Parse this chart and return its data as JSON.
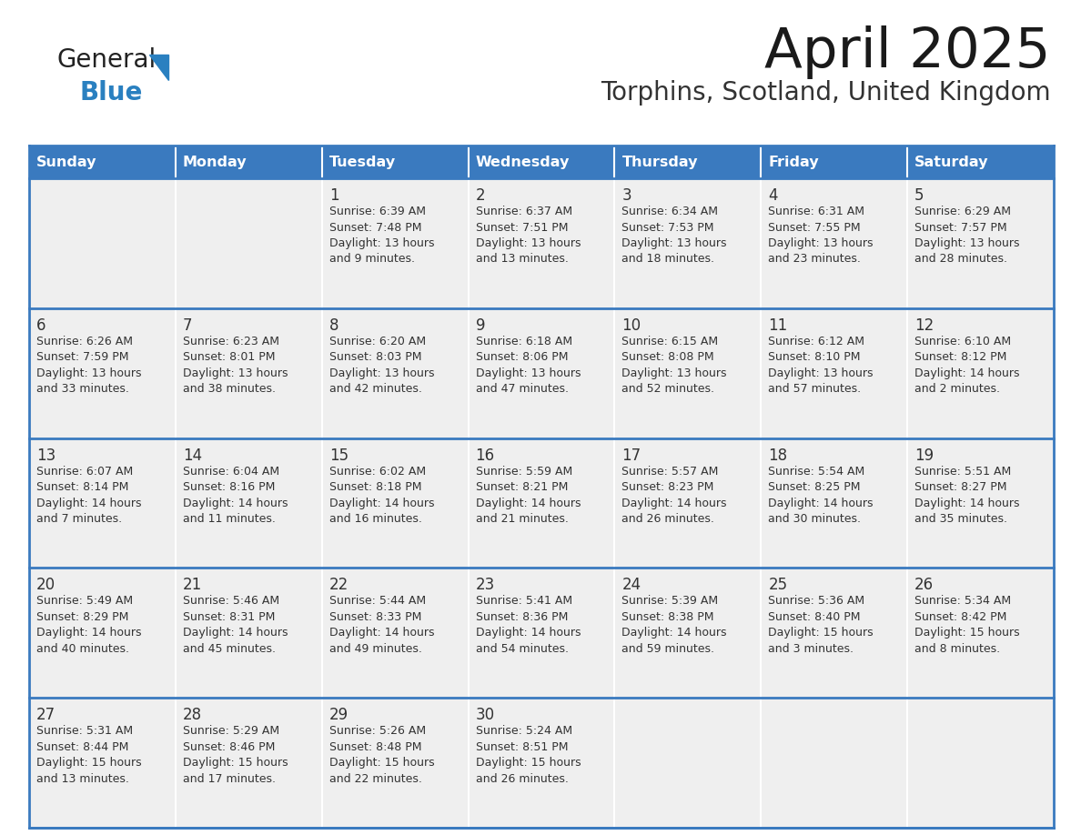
{
  "title": "April 2025",
  "subtitle": "Torphins, Scotland, United Kingdom",
  "header_color": "#3a7abf",
  "header_text_color": "#ffffff",
  "cell_bg_color": "#efefef",
  "border_color": "#3a7abf",
  "text_color": "#333333",
  "day_names": [
    "Sunday",
    "Monday",
    "Tuesday",
    "Wednesday",
    "Thursday",
    "Friday",
    "Saturday"
  ],
  "weeks": [
    [
      {
        "day": "",
        "sunrise": "",
        "sunset": "",
        "daylight1": "",
        "daylight2": ""
      },
      {
        "day": "",
        "sunrise": "",
        "sunset": "",
        "daylight1": "",
        "daylight2": ""
      },
      {
        "day": "1",
        "sunrise": "Sunrise: 6:39 AM",
        "sunset": "Sunset: 7:48 PM",
        "daylight1": "Daylight: 13 hours",
        "daylight2": "and 9 minutes."
      },
      {
        "day": "2",
        "sunrise": "Sunrise: 6:37 AM",
        "sunset": "Sunset: 7:51 PM",
        "daylight1": "Daylight: 13 hours",
        "daylight2": "and 13 minutes."
      },
      {
        "day": "3",
        "sunrise": "Sunrise: 6:34 AM",
        "sunset": "Sunset: 7:53 PM",
        "daylight1": "Daylight: 13 hours",
        "daylight2": "and 18 minutes."
      },
      {
        "day": "4",
        "sunrise": "Sunrise: 6:31 AM",
        "sunset": "Sunset: 7:55 PM",
        "daylight1": "Daylight: 13 hours",
        "daylight2": "and 23 minutes."
      },
      {
        "day": "5",
        "sunrise": "Sunrise: 6:29 AM",
        "sunset": "Sunset: 7:57 PM",
        "daylight1": "Daylight: 13 hours",
        "daylight2": "and 28 minutes."
      }
    ],
    [
      {
        "day": "6",
        "sunrise": "Sunrise: 6:26 AM",
        "sunset": "Sunset: 7:59 PM",
        "daylight1": "Daylight: 13 hours",
        "daylight2": "and 33 minutes."
      },
      {
        "day": "7",
        "sunrise": "Sunrise: 6:23 AM",
        "sunset": "Sunset: 8:01 PM",
        "daylight1": "Daylight: 13 hours",
        "daylight2": "and 38 minutes."
      },
      {
        "day": "8",
        "sunrise": "Sunrise: 6:20 AM",
        "sunset": "Sunset: 8:03 PM",
        "daylight1": "Daylight: 13 hours",
        "daylight2": "and 42 minutes."
      },
      {
        "day": "9",
        "sunrise": "Sunrise: 6:18 AM",
        "sunset": "Sunset: 8:06 PM",
        "daylight1": "Daylight: 13 hours",
        "daylight2": "and 47 minutes."
      },
      {
        "day": "10",
        "sunrise": "Sunrise: 6:15 AM",
        "sunset": "Sunset: 8:08 PM",
        "daylight1": "Daylight: 13 hours",
        "daylight2": "and 52 minutes."
      },
      {
        "day": "11",
        "sunrise": "Sunrise: 6:12 AM",
        "sunset": "Sunset: 8:10 PM",
        "daylight1": "Daylight: 13 hours",
        "daylight2": "and 57 minutes."
      },
      {
        "day": "12",
        "sunrise": "Sunrise: 6:10 AM",
        "sunset": "Sunset: 8:12 PM",
        "daylight1": "Daylight: 14 hours",
        "daylight2": "and 2 minutes."
      }
    ],
    [
      {
        "day": "13",
        "sunrise": "Sunrise: 6:07 AM",
        "sunset": "Sunset: 8:14 PM",
        "daylight1": "Daylight: 14 hours",
        "daylight2": "and 7 minutes."
      },
      {
        "day": "14",
        "sunrise": "Sunrise: 6:04 AM",
        "sunset": "Sunset: 8:16 PM",
        "daylight1": "Daylight: 14 hours",
        "daylight2": "and 11 minutes."
      },
      {
        "day": "15",
        "sunrise": "Sunrise: 6:02 AM",
        "sunset": "Sunset: 8:18 PM",
        "daylight1": "Daylight: 14 hours",
        "daylight2": "and 16 minutes."
      },
      {
        "day": "16",
        "sunrise": "Sunrise: 5:59 AM",
        "sunset": "Sunset: 8:21 PM",
        "daylight1": "Daylight: 14 hours",
        "daylight2": "and 21 minutes."
      },
      {
        "day": "17",
        "sunrise": "Sunrise: 5:57 AM",
        "sunset": "Sunset: 8:23 PM",
        "daylight1": "Daylight: 14 hours",
        "daylight2": "and 26 minutes."
      },
      {
        "day": "18",
        "sunrise": "Sunrise: 5:54 AM",
        "sunset": "Sunset: 8:25 PM",
        "daylight1": "Daylight: 14 hours",
        "daylight2": "and 30 minutes."
      },
      {
        "day": "19",
        "sunrise": "Sunrise: 5:51 AM",
        "sunset": "Sunset: 8:27 PM",
        "daylight1": "Daylight: 14 hours",
        "daylight2": "and 35 minutes."
      }
    ],
    [
      {
        "day": "20",
        "sunrise": "Sunrise: 5:49 AM",
        "sunset": "Sunset: 8:29 PM",
        "daylight1": "Daylight: 14 hours",
        "daylight2": "and 40 minutes."
      },
      {
        "day": "21",
        "sunrise": "Sunrise: 5:46 AM",
        "sunset": "Sunset: 8:31 PM",
        "daylight1": "Daylight: 14 hours",
        "daylight2": "and 45 minutes."
      },
      {
        "day": "22",
        "sunrise": "Sunrise: 5:44 AM",
        "sunset": "Sunset: 8:33 PM",
        "daylight1": "Daylight: 14 hours",
        "daylight2": "and 49 minutes."
      },
      {
        "day": "23",
        "sunrise": "Sunrise: 5:41 AM",
        "sunset": "Sunset: 8:36 PM",
        "daylight1": "Daylight: 14 hours",
        "daylight2": "and 54 minutes."
      },
      {
        "day": "24",
        "sunrise": "Sunrise: 5:39 AM",
        "sunset": "Sunset: 8:38 PM",
        "daylight1": "Daylight: 14 hours",
        "daylight2": "and 59 minutes."
      },
      {
        "day": "25",
        "sunrise": "Sunrise: 5:36 AM",
        "sunset": "Sunset: 8:40 PM",
        "daylight1": "Daylight: 15 hours",
        "daylight2": "and 3 minutes."
      },
      {
        "day": "26",
        "sunrise": "Sunrise: 5:34 AM",
        "sunset": "Sunset: 8:42 PM",
        "daylight1": "Daylight: 15 hours",
        "daylight2": "and 8 minutes."
      }
    ],
    [
      {
        "day": "27",
        "sunrise": "Sunrise: 5:31 AM",
        "sunset": "Sunset: 8:44 PM",
        "daylight1": "Daylight: 15 hours",
        "daylight2": "and 13 minutes."
      },
      {
        "day": "28",
        "sunrise": "Sunrise: 5:29 AM",
        "sunset": "Sunset: 8:46 PM",
        "daylight1": "Daylight: 15 hours",
        "daylight2": "and 17 minutes."
      },
      {
        "day": "29",
        "sunrise": "Sunrise: 5:26 AM",
        "sunset": "Sunset: 8:48 PM",
        "daylight1": "Daylight: 15 hours",
        "daylight2": "and 22 minutes."
      },
      {
        "day": "30",
        "sunrise": "Sunrise: 5:24 AM",
        "sunset": "Sunset: 8:51 PM",
        "daylight1": "Daylight: 15 hours",
        "daylight2": "and 26 minutes."
      },
      {
        "day": "",
        "sunrise": "",
        "sunset": "",
        "daylight1": "",
        "daylight2": ""
      },
      {
        "day": "",
        "sunrise": "",
        "sunset": "",
        "daylight1": "",
        "daylight2": ""
      },
      {
        "day": "",
        "sunrise": "",
        "sunset": "",
        "daylight1": "",
        "daylight2": ""
      }
    ]
  ],
  "logo_general_color": "#222222",
  "logo_blue_color": "#2a80c0",
  "logo_triangle_color": "#2a80c0"
}
